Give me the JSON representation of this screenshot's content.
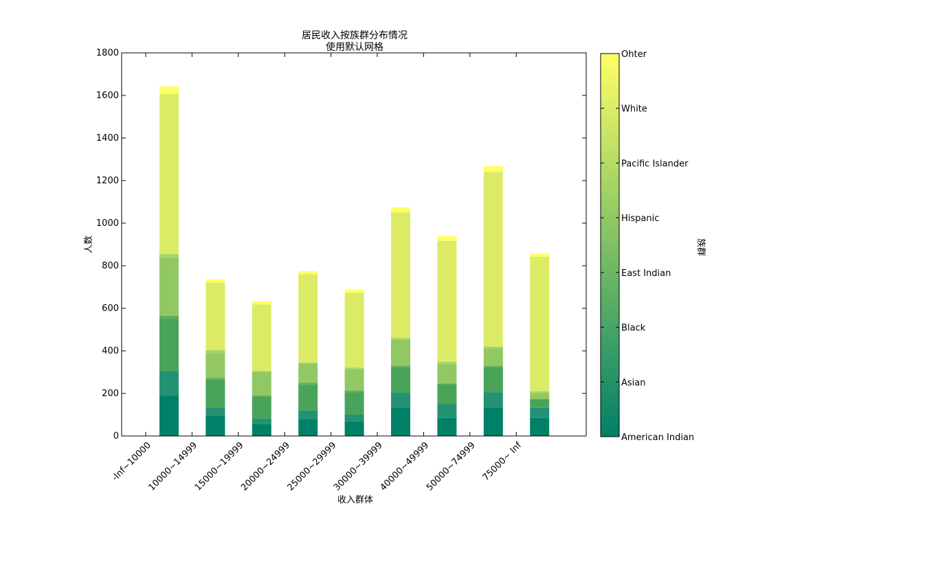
{
  "chart_data": {
    "type": "bar",
    "stacked": true,
    "title": "居民收入按族群分布情况",
    "subtitle": "使用默认网格",
    "xlabel": "收入群体",
    "ylabel": "人数",
    "ylim": [
      0,
      1800
    ],
    "yticks": [
      0,
      200,
      400,
      600,
      800,
      1000,
      1200,
      1400,
      1600,
      1800
    ],
    "x_tick_labels": [
      "-Inf~10000",
      "10000~14999",
      "15000~19999",
      "20000~24999",
      "25000~29999",
      "30000~39999",
      "40000~49999",
      "50000~74999",
      "75000~ Inf"
    ],
    "categories": [
      "-Inf~10000",
      "10000~14999",
      "15000~19999",
      "20000~24999",
      "25000~29999",
      "30000~39999",
      "40000~49999",
      "50000~74999",
      "75000~ Inf"
    ],
    "series": [
      {
        "name": "American Indian",
        "color": "#008066",
        "values": [
          190,
          95,
          57,
          80,
          68,
          135,
          85,
          135,
          85
        ]
      },
      {
        "name": "Asian",
        "color": "#249173",
        "values": [
          115,
          40,
          25,
          40,
          32,
          68,
          65,
          70,
          48
        ]
      },
      {
        "name": "Black",
        "color": "#49a45a",
        "values": [
          245,
          128,
          102,
          120,
          105,
          122,
          92,
          120,
          38
        ]
      },
      {
        "name": "East Indian",
        "color": "#5faf5f",
        "values": [
          15,
          10,
          7,
          10,
          8,
          6,
          5,
          5,
          3
        ]
      },
      {
        "name": "Hispanic",
        "color": "#91c864",
        "values": [
          272,
          117,
          110,
          90,
          100,
          122,
          90,
          82,
          28
        ]
      },
      {
        "name": "Pacific Islander",
        "color": "#a8d468",
        "values": [
          18,
          14,
          5,
          5,
          8,
          8,
          12,
          8,
          8
        ]
      },
      {
        "name": "White",
        "color": "#dbeb66",
        "values": [
          752,
          317,
          312,
          415,
          352,
          590,
          568,
          820,
          632
        ]
      },
      {
        "name": "Ohter",
        "color": "#ffff66",
        "values": [
          35,
          15,
          15,
          15,
          15,
          23,
          23,
          28,
          15
        ]
      }
    ],
    "colorbar": {
      "label": "族群",
      "ticks": [
        "American Indian",
        "Asian",
        "Black",
        "East Indian",
        "Hispanic",
        "Pacific Islander",
        "White",
        "Ohter"
      ],
      "colormap": "summer",
      "color_low": "#008066",
      "color_high": "#ffff66"
    },
    "grid": false
  }
}
